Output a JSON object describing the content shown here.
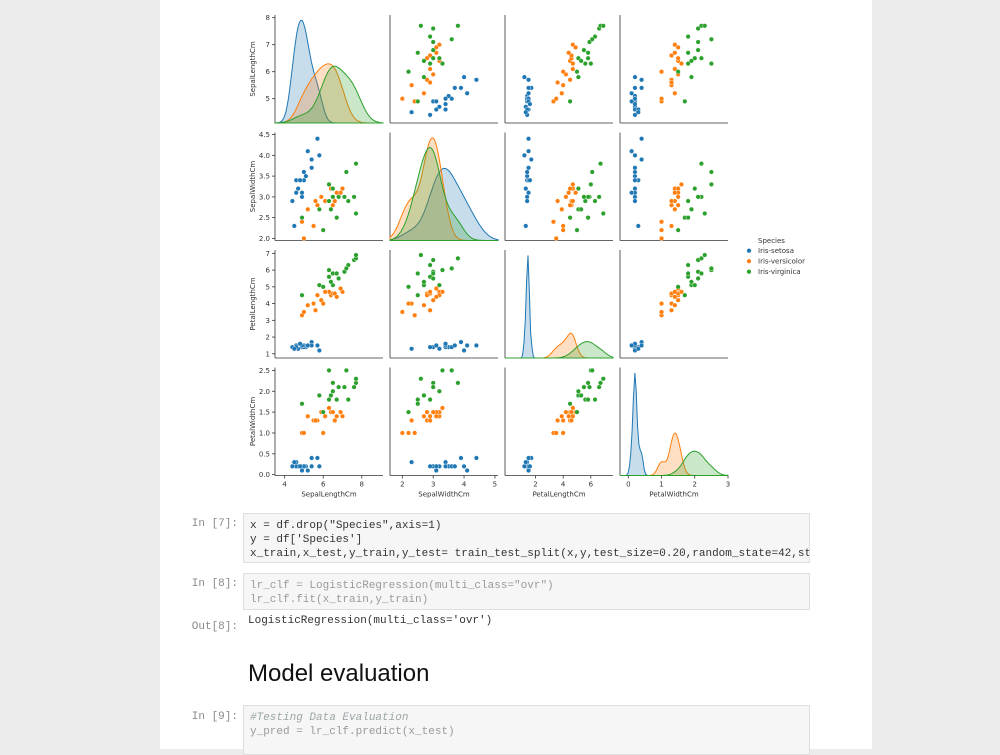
{
  "pairplot": {
    "legend_title": "Species",
    "features": [
      {
        "name": "SepalLengthCm",
        "xlim": [
          3.5,
          9.1
        ],
        "ylim": [
          4.1,
          8.1
        ],
        "xticks": [
          4,
          6,
          8
        ],
        "yticks": [
          5,
          6,
          7,
          8
        ]
      },
      {
        "name": "SepalWidthCm",
        "xlim": [
          1.6,
          5.1
        ],
        "ylim": [
          1.95,
          4.55
        ],
        "xticks": [
          2,
          3,
          4,
          5
        ],
        "yticks": [
          {
            "value": 2,
            "label": "2.0"
          },
          {
            "value": 2.5,
            "label": "2.5"
          },
          {
            "value": 3,
            "label": "3.0"
          },
          {
            "value": 3.5,
            "label": "3.5"
          },
          {
            "value": 4,
            "label": "4.0"
          },
          {
            "value": 4.5,
            "label": "4.5"
          }
        ]
      },
      {
        "name": "PetalLengthCm",
        "xlim": [
          -0.2,
          7.6
        ],
        "ylim": [
          0.75,
          7.2
        ],
        "xticks": [
          2,
          4,
          6
        ],
        "yticks": [
          1,
          2,
          3,
          4,
          5,
          6,
          7
        ]
      },
      {
        "name": "PetalWidthCm",
        "xlim": [
          -0.25,
          3.0
        ],
        "ylim": [
          -0.02,
          2.57
        ],
        "xticks": [
          0,
          1,
          2,
          3
        ],
        "yticks": [
          {
            "value": 0,
            "label": "0.0"
          },
          {
            "value": 0.5,
            "label": "0.5"
          },
          {
            "value": 1,
            "label": "1.0"
          },
          {
            "value": 1.5,
            "label": "1.5"
          },
          {
            "value": 2,
            "label": "2.0"
          },
          {
            "value": 2.5,
            "label": "2.5"
          }
        ]
      }
    ],
    "species": [
      {
        "name": "Iris-setosa",
        "color": "#1f77b4",
        "rows": [
          [
            5.1,
            3.5,
            1.4,
            0.2
          ],
          [
            4.9,
            3.0,
            1.4,
            0.2
          ],
          [
            4.7,
            3.2,
            1.3,
            0.2
          ],
          [
            4.6,
            3.1,
            1.5,
            0.2
          ],
          [
            5.0,
            3.6,
            1.4,
            0.2
          ],
          [
            5.4,
            3.9,
            1.7,
            0.4
          ],
          [
            4.6,
            3.4,
            1.4,
            0.3
          ],
          [
            5.0,
            3.4,
            1.5,
            0.2
          ],
          [
            4.4,
            2.9,
            1.4,
            0.2
          ],
          [
            4.9,
            3.1,
            1.5,
            0.1
          ],
          [
            5.4,
            3.7,
            1.5,
            0.2
          ],
          [
            4.8,
            3.4,
            1.6,
            0.2
          ],
          [
            5.8,
            4.0,
            1.2,
            0.2
          ],
          [
            5.7,
            4.4,
            1.5,
            0.4
          ],
          [
            4.5,
            2.3,
            1.3,
            0.3
          ],
          [
            5.2,
            4.1,
            1.5,
            0.1
          ]
        ]
      },
      {
        "name": "Iris-versicolor",
        "color": "#ff7f0e",
        "rows": [
          [
            7.0,
            3.2,
            4.7,
            1.4
          ],
          [
            6.4,
            3.2,
            4.5,
            1.5
          ],
          [
            6.9,
            3.1,
            4.9,
            1.5
          ],
          [
            5.5,
            2.3,
            4.0,
            1.3
          ],
          [
            6.5,
            2.8,
            4.6,
            1.5
          ],
          [
            5.7,
            2.8,
            4.5,
            1.3
          ],
          [
            6.3,
            3.3,
            4.7,
            1.6
          ],
          [
            4.9,
            2.4,
            3.3,
            1.0
          ],
          [
            6.6,
            2.9,
            4.6,
            1.3
          ],
          [
            5.2,
            2.7,
            3.9,
            1.4
          ],
          [
            5.0,
            2.0,
            3.5,
            1.0
          ],
          [
            5.9,
            3.0,
            4.2,
            1.5
          ],
          [
            6.0,
            2.2,
            4.0,
            1.0
          ],
          [
            6.1,
            2.9,
            4.7,
            1.4
          ],
          [
            5.6,
            2.9,
            3.6,
            1.3
          ],
          [
            6.7,
            3.1,
            4.4,
            1.4
          ]
        ]
      },
      {
        "name": "Iris-virginica",
        "color": "#2ca02c",
        "rows": [
          [
            6.3,
            3.3,
            6.0,
            2.5
          ],
          [
            5.8,
            2.7,
            5.1,
            1.9
          ],
          [
            7.1,
            3.0,
            5.9,
            2.1
          ],
          [
            6.3,
            2.9,
            5.6,
            1.8
          ],
          [
            6.5,
            3.0,
            5.8,
            2.2
          ],
          [
            7.6,
            3.0,
            6.6,
            2.1
          ],
          [
            4.9,
            2.5,
            4.5,
            1.7
          ],
          [
            7.3,
            2.9,
            6.3,
            1.8
          ],
          [
            6.7,
            2.5,
            5.8,
            1.8
          ],
          [
            7.2,
            3.6,
            6.1,
            2.5
          ],
          [
            6.5,
            3.2,
            5.1,
            2.0
          ],
          [
            6.4,
            2.7,
            5.3,
            1.9
          ],
          [
            6.8,
            3.0,
            5.5,
            2.1
          ],
          [
            7.7,
            3.8,
            6.7,
            2.2
          ],
          [
            7.7,
            2.6,
            6.9,
            2.3
          ],
          [
            6.0,
            2.2,
            5.0,
            1.5
          ]
        ]
      }
    ]
  },
  "cells": [
    {
      "prompt": "In [7]:",
      "code": [
        "x = df.drop(\"Species\",axis=1)",
        "y = df['Species']",
        "x_train,x_test,y_train,y_test= train_test_split(x,y,test_size=0.20,random_state=42,st"
      ]
    },
    {
      "prompt": "In [8]:",
      "code": [
        "lr_clf = LogisticRegression(multi_class=\"ovr\")",
        "lr_clf.fit(x_train,y_train)"
      ],
      "output_prompt": "Out[8]:",
      "output": "LogisticRegression(multi_class='ovr')"
    },
    {
      "markdown": "Model evaluation"
    },
    {
      "prompt": "In [9]:",
      "code": [
        "#Testing Data Evaluation",
        "y_pred = lr_clf.predict(x_test)"
      ]
    }
  ]
}
